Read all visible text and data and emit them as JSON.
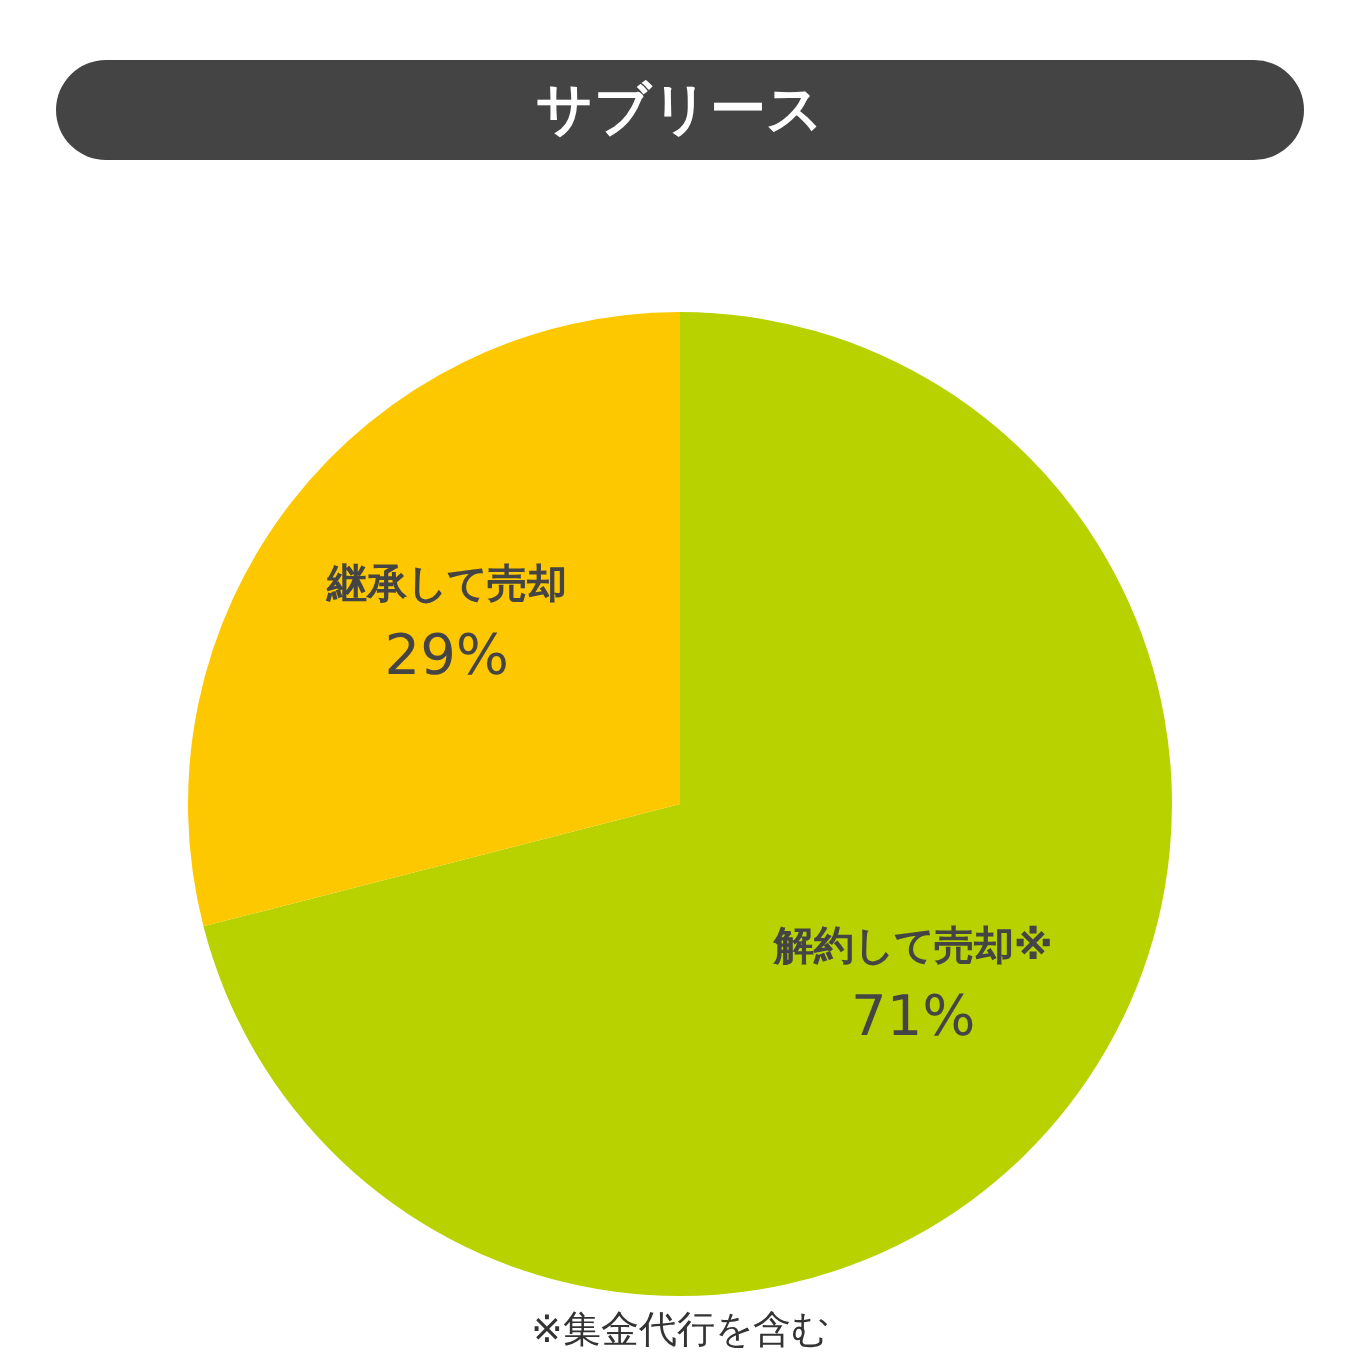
{
  "chart_data": {
    "type": "pie",
    "title": "サブリース",
    "categories": [
      "解約して売却※",
      "継承して売却"
    ],
    "values": [
      71,
      29
    ],
    "colors": [
      "#b8d200",
      "#fdc800"
    ],
    "value_labels": [
      "71%",
      "29%"
    ],
    "annotations": [
      "※集金代行を含む"
    ]
  }
}
